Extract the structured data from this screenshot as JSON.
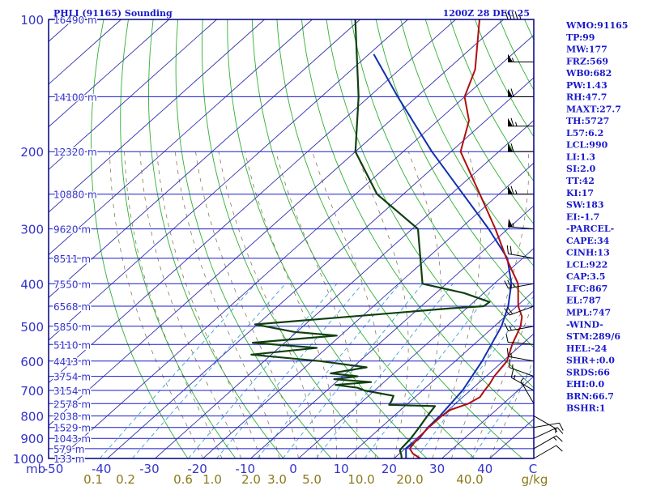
{
  "header": {
    "station": "PHLI (91165) Sounding",
    "time": "1200Z 28 DEC 25"
  },
  "indices": [
    "WMO:91165",
    "TP:99",
    "MW:177",
    "FRZ:569",
    "WB0:682",
    "PW:1.43",
    "RH:47.7",
    "MAXT:27.7",
    "TH:5727",
    "L57:6.2",
    "LCL:990",
    "LI:1.3",
    "SI:2.0",
    "TT:42",
    "KI:17",
    "SW:183",
    "EI:-1.7",
    "-PARCEL-",
    "CAPE:34",
    "CINH:13",
    "LCL:922",
    "CAP:3.5",
    "LFC:867",
    "EL:787",
    "MPL:747",
    "-WIND-",
    "STM:289/6",
    "HEL:-24",
    "SHR+:0.0",
    "SRDS:66",
    "EHI:0.0",
    "BRN:66.7",
    "BSHR:1"
  ],
  "colors": {
    "frame": "#000080",
    "isobar": "#1a1acc",
    "isotherm": "#3030b0",
    "dry_adiabat": "#30b030",
    "moist_adiabat": "#7a6a40",
    "mixing_ratio": "#40a0d0",
    "temperature": "#b01010",
    "dewpoint": "#104010",
    "parcel": "#1030b0",
    "wind": "#000000"
  },
  "chart_data": {
    "type": "skew-t log-p",
    "pressure_ticks": [
      "100",
      "200",
      "300",
      "400",
      "500",
      "600",
      "700",
      "800",
      "900",
      "1000"
    ],
    "pressure_levels_mb": [
      100,
      150,
      200,
      250,
      300,
      350,
      400,
      450,
      500,
      550,
      600,
      650,
      700,
      750,
      800,
      850,
      900,
      950,
      1000
    ],
    "height_labels": [
      {
        "p": 100,
        "label": "16490 m"
      },
      {
        "p": 150,
        "label": "14100 m"
      },
      {
        "p": 200,
        "label": "12320 m"
      },
      {
        "p": 250,
        "label": "10880 m"
      },
      {
        "p": 300,
        "label": "9620 m"
      },
      {
        "p": 350,
        "label": "8511 m"
      },
      {
        "p": 400,
        "label": "7550 m"
      },
      {
        "p": 450,
        "label": "6568 m"
      },
      {
        "p": 500,
        "label": "5850 m"
      },
      {
        "p": 550,
        "label": "5110 m"
      },
      {
        "p": 600,
        "label": "4413 m"
      },
      {
        "p": 650,
        "label": "3754 m"
      },
      {
        "p": 700,
        "label": "3154 m"
      },
      {
        "p": 750,
        "label": "2578 m"
      },
      {
        "p": 800,
        "label": "2038 m"
      },
      {
        "p": 850,
        "label": "1529 m"
      },
      {
        "p": 900,
        "label": "1043 m"
      },
      {
        "p": 950,
        "label": "579 m"
      },
      {
        "p": 1000,
        "label": "133 m"
      }
    ],
    "pressure_unit_label": "mb",
    "temperature_ticks": [
      "-50",
      "-40",
      "-30",
      "-20",
      "-10",
      "0",
      "10",
      "20",
      "30",
      "40",
      "C"
    ],
    "mixing_ratio_ticks": [
      "0.1",
      "0.2",
      "0.6",
      "1.0",
      "2.0",
      "3.0",
      "5.0",
      "10.0",
      "20.0",
      "40.0",
      "g/kg"
    ],
    "temperature_profile": [
      {
        "p": 1000,
        "t": 25.5
      },
      {
        "p": 975,
        "t": 22.8
      },
      {
        "p": 950,
        "t": 21.0
      },
      {
        "p": 925,
        "t": 20.6
      },
      {
        "p": 900,
        "t": 20.3
      },
      {
        "p": 850,
        "t": 20.0
      },
      {
        "p": 800,
        "t": 20.0
      },
      {
        "p": 775,
        "t": 20.4
      },
      {
        "p": 750,
        "t": 22.7
      },
      {
        "p": 725,
        "t": 23.6
      },
      {
        "p": 700,
        "t": 23.0
      },
      {
        "p": 675,
        "t": 22.5
      },
      {
        "p": 650,
        "t": 21.7
      },
      {
        "p": 600,
        "t": 20.8
      },
      {
        "p": 550,
        "t": 18.0
      },
      {
        "p": 500,
        "t": 15.5
      },
      {
        "p": 475,
        "t": 13.5
      },
      {
        "p": 450,
        "t": 10.3
      },
      {
        "p": 400,
        "t": 5.0
      },
      {
        "p": 350,
        "t": -3.4
      },
      {
        "p": 300,
        "t": -12.6
      },
      {
        "p": 250,
        "t": -24.0
      },
      {
        "p": 200,
        "t": -38.0
      },
      {
        "p": 170,
        "t": -43.5
      },
      {
        "p": 150,
        "t": -50.0
      },
      {
        "p": 130,
        "t": -54.2
      },
      {
        "p": 100,
        "t": -65.0
      }
    ],
    "dewpoint_profile": [
      {
        "p": 1000,
        "t": 21.6
      },
      {
        "p": 980,
        "t": 20.6
      },
      {
        "p": 960,
        "t": 19.4
      },
      {
        "p": 950,
        "t": 19.2
      },
      {
        "p": 900,
        "t": 18.8
      },
      {
        "p": 850,
        "t": 18.0
      },
      {
        "p": 800,
        "t": 17.0
      },
      {
        "p": 760,
        "t": 16.3
      },
      {
        "p": 755,
        "t": 6.4
      },
      {
        "p": 740,
        "t": 6.0
      },
      {
        "p": 720,
        "t": 5.2
      },
      {
        "p": 700,
        "t": -2.2
      },
      {
        "p": 690,
        "t": -4.2
      },
      {
        "p": 680,
        "t": -9.5
      },
      {
        "p": 670,
        "t": -2.7
      },
      {
        "p": 660,
        "t": -11.1
      },
      {
        "p": 650,
        "t": -6.9
      },
      {
        "p": 640,
        "t": -13.2
      },
      {
        "p": 620,
        "t": -7.1
      },
      {
        "p": 600,
        "t": -18.3
      },
      {
        "p": 580,
        "t": -34.2
      },
      {
        "p": 560,
        "t": -22.1
      },
      {
        "p": 545,
        "t": -36.7
      },
      {
        "p": 525,
        "t": -20.8
      },
      {
        "p": 515,
        "t": -30.5
      },
      {
        "p": 495,
        "t": -40.5
      },
      {
        "p": 470,
        "t": -17.6
      },
      {
        "p": 455,
        "t": -3.3
      },
      {
        "p": 450,
        "t": 3.1
      },
      {
        "p": 440,
        "t": 3.3
      },
      {
        "p": 420,
        "t": -4.1
      },
      {
        "p": 400,
        "t": -15.0
      },
      {
        "p": 300,
        "t": -28.8
      },
      {
        "p": 250,
        "t": -45.5
      },
      {
        "p": 200,
        "t": -60.0
      },
      {
        "p": 150,
        "t": -72.2
      },
      {
        "p": 100,
        "t": -91.0
      }
    ],
    "parcel_profile": [
      {
        "p": 1000,
        "t": 22.5
      },
      {
        "p": 950,
        "t": 20.2
      },
      {
        "p": 900,
        "t": 20.6
      },
      {
        "p": 850,
        "t": 19.8
      },
      {
        "p": 800,
        "t": 19.6
      },
      {
        "p": 700,
        "t": 18.4
      },
      {
        "p": 600,
        "t": 15.6
      },
      {
        "p": 500,
        "t": 11.5
      },
      {
        "p": 450,
        "t": 8.2
      },
      {
        "p": 400,
        "t": 3.6
      },
      {
        "p": 350,
        "t": -3.2
      },
      {
        "p": 300,
        "t": -14.0
      },
      {
        "p": 250,
        "t": -27.5
      },
      {
        "p": 200,
        "t": -44.0
      },
      {
        "p": 150,
        "t": -64.0
      },
      {
        "p": 120,
        "t": -79.0
      }
    ],
    "winds": [
      {
        "p": 1000,
        "dir": 60,
        "spd": 10
      },
      {
        "p": 950,
        "dir": 60,
        "spd": 15
      },
      {
        "p": 900,
        "dir": 65,
        "spd": 15
      },
      {
        "p": 850,
        "dir": 80,
        "spd": 10
      },
      {
        "p": 800,
        "dir": 120,
        "spd": 5
      },
      {
        "p": 750,
        "dir": 330,
        "spd": 5
      },
      {
        "p": 700,
        "dir": 300,
        "spd": 15
      },
      {
        "p": 650,
        "dir": 290,
        "spd": 15
      },
      {
        "p": 600,
        "dir": 280,
        "spd": 15
      },
      {
        "p": 550,
        "dir": 275,
        "spd": 10
      },
      {
        "p": 500,
        "dir": 260,
        "spd": 15
      },
      {
        "p": 450,
        "dir": 250,
        "spd": 20
      },
      {
        "p": 400,
        "dir": 260,
        "spd": 25
      },
      {
        "p": 350,
        "dir": 280,
        "spd": 20
      },
      {
        "p": 300,
        "dir": 275,
        "spd": 55
      },
      {
        "p": 250,
        "dir": 270,
        "spd": 65
      },
      {
        "p": 200,
        "dir": 270,
        "spd": 60
      },
      {
        "p": 175,
        "dir": 270,
        "spd": 65
      },
      {
        "p": 150,
        "dir": 270,
        "spd": 60
      },
      {
        "p": 125,
        "dir": 270,
        "spd": 55
      },
      {
        "p": 100,
        "dir": 270,
        "spd": 45
      }
    ]
  }
}
